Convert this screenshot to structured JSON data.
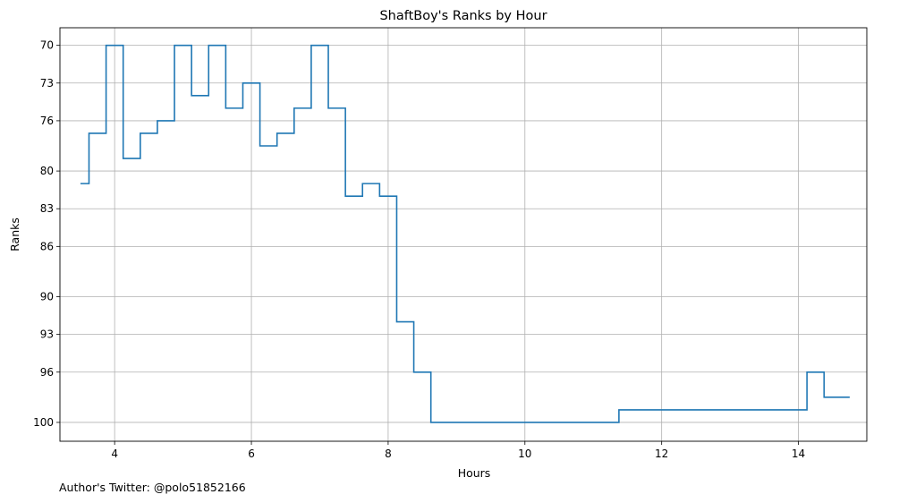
{
  "chart_data": {
    "type": "line",
    "title": "ShaftBoy's Ranks by Hour",
    "xlabel": "Hours",
    "ylabel": "Ranks",
    "xlim": [
      3.2,
      15.0
    ],
    "ylim": [
      101.5,
      68.6
    ],
    "y_inverted": true,
    "step": "mid",
    "grid": true,
    "xticks": [
      4,
      6,
      8,
      10,
      12,
      14
    ],
    "yticks": [
      70,
      73,
      76,
      80,
      83,
      86,
      90,
      93,
      96,
      100
    ],
    "series": [
      {
        "color": "#1f77b4",
        "x": [
          3.5,
          3.75,
          4.0,
          4.25,
          4.5,
          4.75,
          5.0,
          5.25,
          5.5,
          5.75,
          6.0,
          6.25,
          6.5,
          6.75,
          7.0,
          7.25,
          7.5,
          7.75,
          8.0,
          8.25,
          8.5,
          8.75,
          9.0,
          9.25,
          9.5,
          9.75,
          10.0,
          10.25,
          10.5,
          10.75,
          11.0,
          11.25,
          11.5,
          11.75,
          12.0,
          12.25,
          12.5,
          12.75,
          13.0,
          13.25,
          13.5,
          13.75,
          14.0,
          14.25,
          14.5,
          14.75
        ],
        "y": [
          81,
          77,
          70,
          79,
          77,
          76,
          70,
          74,
          70,
          75,
          73,
          78,
          77,
          75,
          70,
          75,
          82,
          81,
          82,
          92,
          96,
          100,
          100,
          100,
          100,
          100,
          100,
          100,
          100,
          100,
          100,
          100,
          99,
          99,
          99,
          99,
          99,
          99,
          99,
          99,
          99,
          99,
          99,
          96,
          98,
          98
        ]
      }
    ]
  },
  "footer": {
    "author": "Author's Twitter: @polo51852166"
  }
}
